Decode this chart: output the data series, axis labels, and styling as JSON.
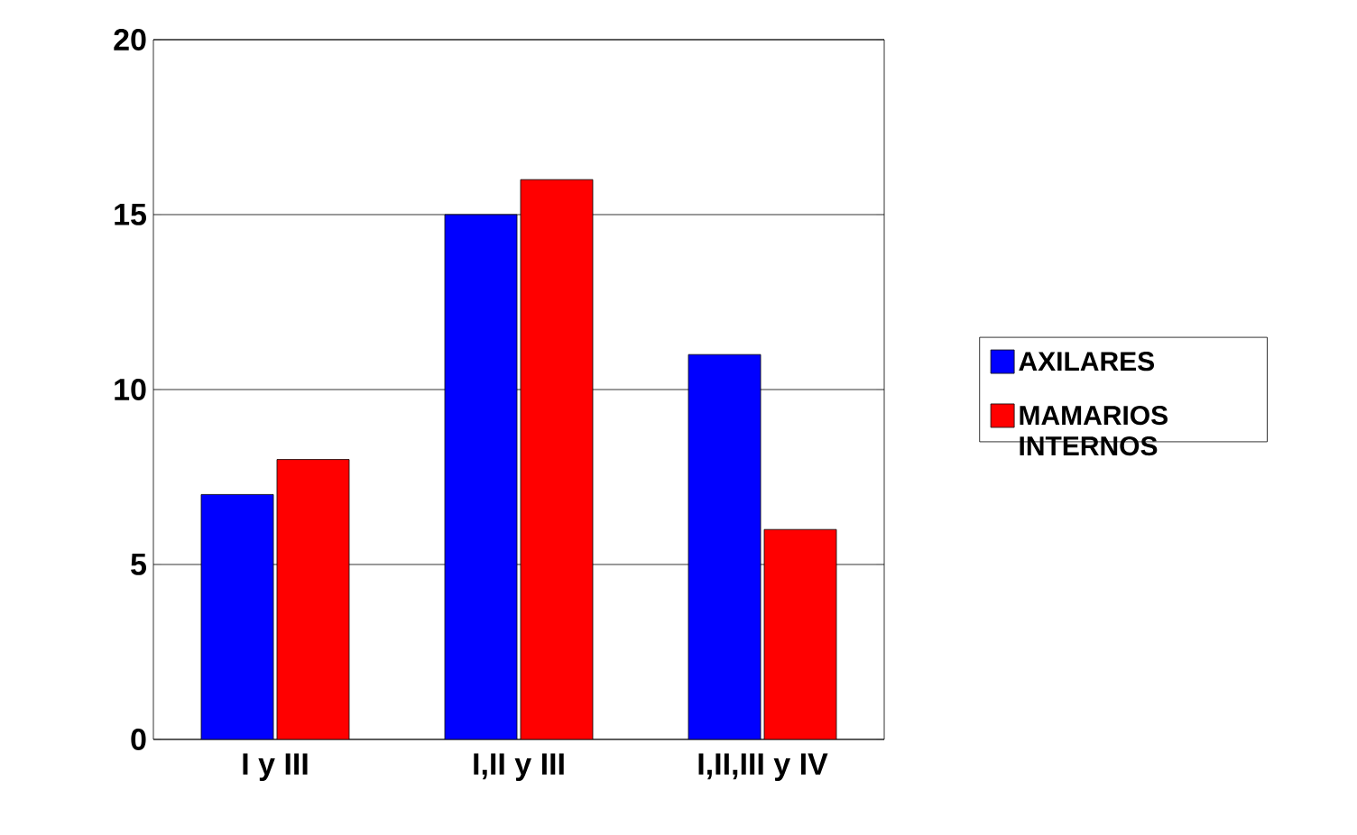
{
  "chart_data": {
    "type": "bar",
    "categories": [
      "I y III",
      "I,II y III",
      "I,II,III y IV"
    ],
    "series": [
      {
        "name": "AXILARES",
        "color": "#0000ff",
        "values": [
          7,
          15,
          11
        ]
      },
      {
        "name": "MAMARIOS INTERNOS",
        "color": "#ff0000",
        "values": [
          8,
          16,
          6
        ]
      }
    ],
    "ylim": [
      0,
      20
    ],
    "yticks": [
      0,
      5,
      10,
      15,
      20
    ],
    "grid": "y",
    "legend": "right"
  }
}
